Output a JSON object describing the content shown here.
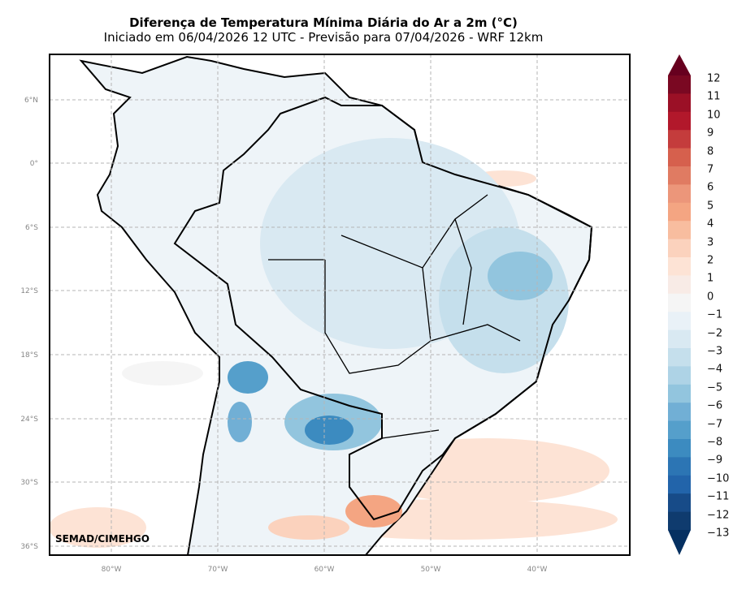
{
  "title": "Diferença de Temperatura Mínima Diária do Ar a 2m (°C)",
  "subtitle": "Iniciado em 06/04/2026 12 UTC - Previsão para 07/04/2026 - WRF 12km",
  "credit": "SEMAD/CIMEHGO",
  "lat_labels": [
    "6°N",
    "0°",
    "6°S",
    "12°S",
    "18°S",
    "24°S",
    "30°S",
    "36°S"
  ],
  "lon_labels": [
    "80°W",
    "70°W",
    "60°W",
    "50°W",
    "40°W"
  ],
  "colorbar": {
    "labels": [
      "12",
      "11",
      "10",
      "9",
      "8",
      "7",
      "6",
      "5",
      "4",
      "3",
      "2",
      "1",
      "0",
      "−1",
      "−2",
      "−3",
      "−4",
      "−5",
      "−6",
      "−7",
      "−8",
      "−9",
      "−10",
      "−11",
      "−12",
      "−13"
    ],
    "colors": [
      "#67001f",
      "#7a0822",
      "#9b1026",
      "#b2182b",
      "#c43c3c",
      "#d6604d",
      "#e07b62",
      "#ec967a",
      "#f4a582",
      "#f8bd9f",
      "#fbd2bd",
      "#fde3d5",
      "#f8ebe6",
      "#f5f5f5",
      "#e9f1f7",
      "#d9e9f2",
      "#c5dfec",
      "#aed3e6",
      "#92c5de",
      "#71afd5",
      "#559fcb",
      "#3c8bc0",
      "#2c75b4",
      "#2264aa",
      "#174b88",
      "#0f3b6e",
      "#053061"
    ]
  }
}
